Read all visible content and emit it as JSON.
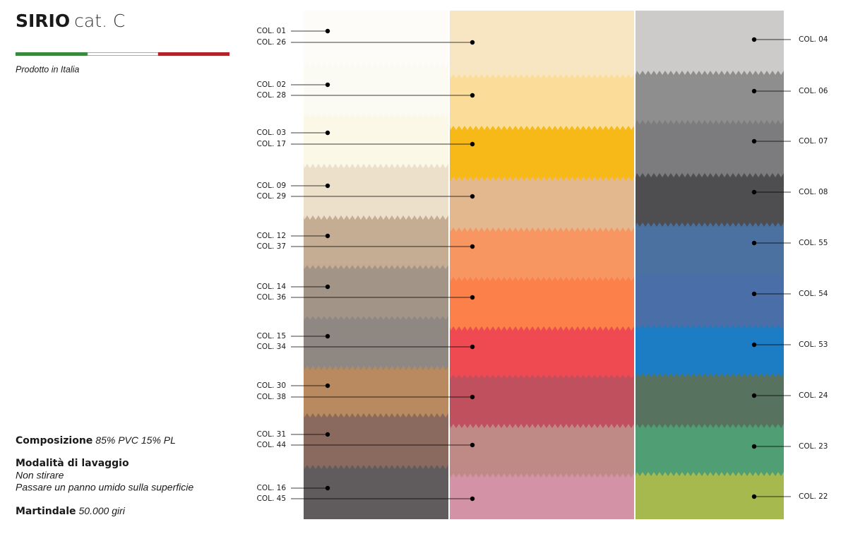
{
  "header": {
    "brand": "SIRIO",
    "category": "cat. C",
    "origin": "Prodotto in Italia"
  },
  "specs": {
    "composition": {
      "label": "Composizione",
      "value": "85% PVC 15% PL"
    },
    "washing": {
      "label": "Modalità di lavaggio",
      "lines": [
        "Non stirare",
        "Passare un panno umido sulla superficie"
      ]
    },
    "martindale": {
      "label": "Martindale",
      "value": "50.000 giri"
    }
  },
  "swatches": [
    [
      {
        "label": "COL. 01",
        "color": "#fdfcf8"
      },
      {
        "label": "COL. 02",
        "color": "#fbfaf3"
      },
      {
        "label": "COL. 03",
        "color": "#fbf8e8"
      },
      {
        "label": "COL. 09",
        "color": "#ece0cb"
      },
      {
        "label": "COL. 12",
        "color": "#c4ad92"
      },
      {
        "label": "COL. 14",
        "color": "#a29487"
      },
      {
        "label": "COL. 15",
        "color": "#8e8782"
      },
      {
        "label": "COL. 30",
        "color": "#b98a5f"
      },
      {
        "label": "COL. 31",
        "color": "#8a6a5e"
      },
      {
        "label": "COL. 16",
        "color": "#605b5d"
      }
    ],
    [
      {
        "label": "COL. 26",
        "color": "#f8e6c2"
      },
      {
        "label": "COL. 28",
        "color": "#fbdc98"
      },
      {
        "label": "COL. 17",
        "color": "#f7b918"
      },
      {
        "label": "COL. 29",
        "color": "#e4b88e"
      },
      {
        "label": "COL. 37",
        "color": "#f79660"
      },
      {
        "label": "COL. 36",
        "color": "#fb8049"
      },
      {
        "label": "COL. 34",
        "color": "#ef4a52"
      },
      {
        "label": "COL. 38",
        "color": "#c0505e"
      },
      {
        "label": "COL. 44",
        "color": "#bf8a86"
      },
      {
        "label": "COL. 45",
        "color": "#d492a6"
      }
    ],
    [
      {
        "label": "COL. 04",
        "color": "#cdcaca"
      },
      {
        "label": "COL. 06",
        "color": "#8f8e8f"
      },
      {
        "label": "COL. 07",
        "color": "#7c7b7e"
      },
      {
        "label": "COL. 08",
        "color": "#4e4e50"
      },
      {
        "label": "COL. 55",
        "color": "#4a71a0"
      },
      {
        "label": "COL. 54",
        "color": "#4a6fa8"
      },
      {
        "label": "COL. 53",
        "color": "#1c7dc4"
      },
      {
        "label": "COL. 24",
        "color": "#577360"
      },
      {
        "label": "COL. 23",
        "color": "#4f9e74"
      },
      {
        "label": "COL. 22",
        "color": "#a6b94e"
      }
    ]
  ]
}
